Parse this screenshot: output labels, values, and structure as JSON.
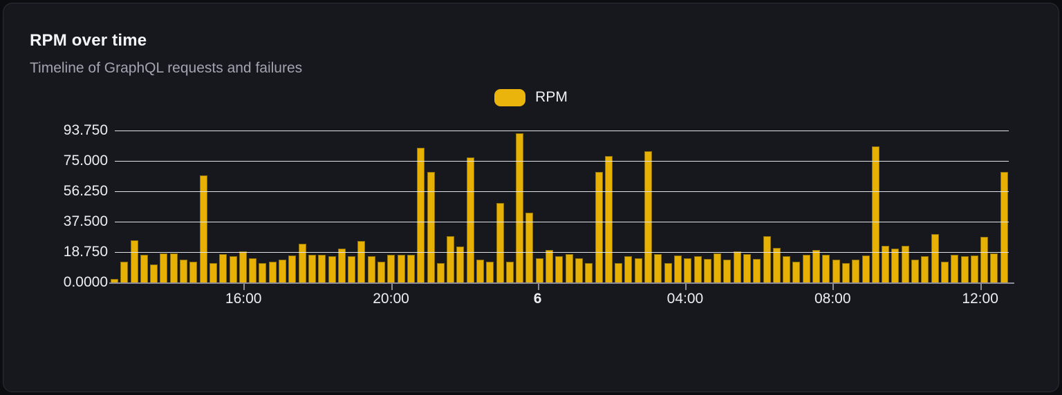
{
  "card": {
    "title": "RPM over time",
    "subtitle": "Timeline of GraphQL requests and failures"
  },
  "legend": {
    "label": "RPM",
    "swatch_color": "#eab40c"
  },
  "colors": {
    "page_bg": "#0c0d10",
    "card_bg": "#16181d",
    "card_border": "#2b2e37",
    "bar_fill": "#e6b004",
    "bar_border": "#8f7109",
    "gridline": "#e3e5ed",
    "axis": "#8d8b97",
    "tick_text": "#eceef4"
  },
  "chart_data": {
    "type": "bar",
    "title": "RPM over time",
    "subtitle": "Timeline of GraphQL requests and failures",
    "xlabel": "",
    "ylabel": "",
    "ylim": [
      0,
      93.75
    ],
    "grid": "horizontal",
    "legend_position": "top-center",
    "y_ticks": [
      "93.750",
      "75.000",
      "56.250",
      "37.500",
      "18.750",
      "0.0000"
    ],
    "x_ticks": [
      {
        "label": "16:00",
        "pos": 0.144,
        "bold": false
      },
      {
        "label": "20:00",
        "pos": 0.309,
        "bold": false
      },
      {
        "label": "6",
        "pos": 0.473,
        "bold": true
      },
      {
        "label": "04:00",
        "pos": 0.638,
        "bold": false
      },
      {
        "label": "08:00",
        "pos": 0.803,
        "bold": false
      },
      {
        "label": "12:00",
        "pos": 0.968,
        "bold": false
      }
    ],
    "series": [
      {
        "name": "RPM",
        "values": [
          2,
          13,
          26,
          17,
          11,
          18,
          18,
          14,
          13,
          66,
          12,
          17.5,
          16,
          19,
          15,
          12,
          13,
          14,
          16.5,
          24,
          17,
          17,
          16,
          21,
          16,
          25.5,
          16,
          13,
          17,
          17,
          17,
          83,
          68,
          12,
          28.5,
          22,
          77,
          14,
          13,
          49,
          13,
          92,
          43,
          15,
          20,
          16,
          17.5,
          15,
          12,
          68,
          78,
          12,
          16,
          15,
          81,
          17.5,
          12,
          16.5,
          15,
          16,
          14.5,
          18,
          14,
          19,
          17.5,
          14.5,
          28.5,
          21.5,
          16,
          13,
          17,
          20,
          17,
          14,
          12,
          14,
          16.5,
          84,
          22.5,
          21,
          22.5,
          14,
          16,
          30,
          13,
          17,
          16,
          16.5,
          28,
          18,
          68
        ]
      }
    ]
  }
}
